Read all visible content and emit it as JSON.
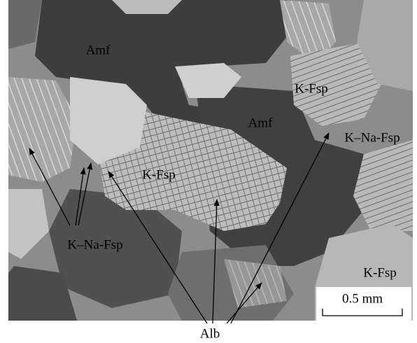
{
  "labels": [
    "Amf",
    "K-Fsp",
    "Amf",
    "K–Na-Fsp",
    "K-Fsp",
    "K–Na-Fsp",
    "K-Fsp"
  ],
  "scale_bar": "0.5 mm",
  "caption": "Alb"
}
